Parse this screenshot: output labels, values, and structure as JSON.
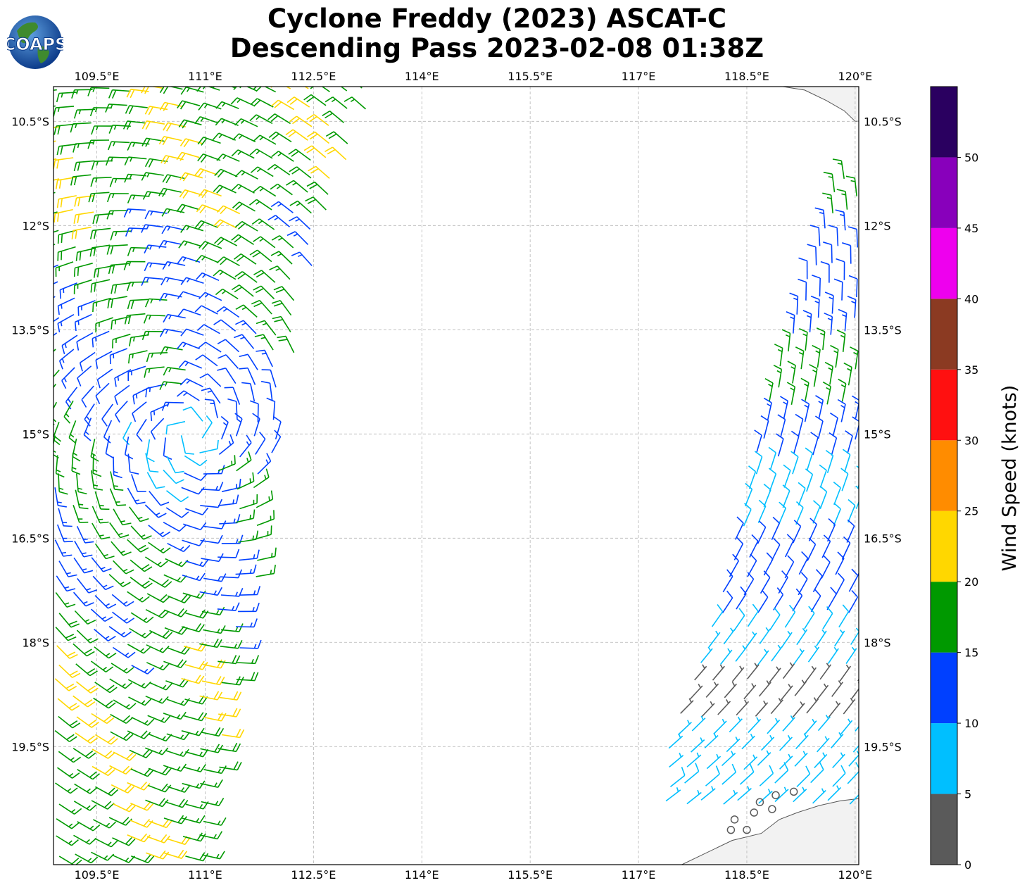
{
  "title_line1": "Cyclone Freddy (2023) ASCAT-C",
  "title_line2": "Descending Pass 2023-02-08 01:38Z",
  "logo_text": "COAPS",
  "map": {
    "lon_range": [
      108.9,
      120.05
    ],
    "lat_range": [
      -21.2,
      -10.0
    ],
    "lon_ticks": [
      "109.5°E",
      "111°E",
      "112.5°E",
      "114°E",
      "115.5°E",
      "117°E",
      "118.5°E",
      "120°E"
    ],
    "lon_tick_values": [
      109.5,
      111.0,
      112.5,
      114.0,
      115.5,
      117.0,
      118.5,
      120.0
    ],
    "lat_ticks": [
      "10.5°S",
      "12°S",
      "13.5°S",
      "15°S",
      "16.5°S",
      "18°S",
      "19.5°S"
    ],
    "lat_tick_values": [
      -10.5,
      -12.0,
      -13.5,
      -15.0,
      -16.5,
      -18.0,
      -19.5
    ],
    "gridlines": true,
    "land_color": "#f2f2f2",
    "coast_color": "#555555"
  },
  "colorbar": {
    "label": "Wind Speed (knots)",
    "ticks": [
      "0",
      "5",
      "10",
      "15",
      "20",
      "25",
      "30",
      "35",
      "40",
      "45",
      "50"
    ],
    "tick_values": [
      0,
      5,
      10,
      15,
      20,
      25,
      30,
      35,
      40,
      45,
      50
    ],
    "range": [
      0,
      55
    ],
    "bins": [
      {
        "min": 0,
        "max": 5,
        "color": "#5a5a5a"
      },
      {
        "min": 5,
        "max": 10,
        "color": "#00bfff"
      },
      {
        "min": 10,
        "max": 15,
        "color": "#0040ff"
      },
      {
        "min": 15,
        "max": 20,
        "color": "#009900"
      },
      {
        "min": 20,
        "max": 25,
        "color": "#ffd700"
      },
      {
        "min": 25,
        "max": 30,
        "color": "#ff8c00"
      },
      {
        "min": 30,
        "max": 35,
        "color": "#ff1010"
      },
      {
        "min": 35,
        "max": 40,
        "color": "#8b3a22"
      },
      {
        "min": 40,
        "max": 45,
        "color": "#ee00ee"
      },
      {
        "min": 45,
        "max": 50,
        "color": "#8800bb"
      },
      {
        "min": 50,
        "max": 55,
        "color": "#2a0060"
      }
    ]
  },
  "chart_data": {
    "type": "wind_barbs",
    "units": "knots",
    "center": [
      110.8,
      -15.0
    ],
    "swath_west_edge": [
      [
        108.9,
        -10.0
      ],
      [
        108.9,
        -21.2
      ]
    ],
    "swath_east_edge": [
      [
        113.3,
        -10.2
      ],
      [
        112.3,
        -13.2
      ],
      [
        111.6,
        -17.8
      ],
      [
        111.1,
        -20.4
      ]
    ],
    "swath2_west_edge": [
      [
        119.8,
        -11.2
      ],
      [
        118.8,
        -14.5
      ],
      [
        118.1,
        -17.5
      ],
      [
        117.4,
        -19.5
      ],
      [
        117.3,
        -21.0
      ]
    ],
    "swath2_east_edge": [
      [
        120.05,
        -11.2
      ],
      [
        120.05,
        -21.0
      ]
    ],
    "calm_circles": [
      [
        118.28,
        -20.7
      ],
      [
        118.33,
        -20.55
      ],
      [
        118.5,
        -20.7
      ],
      [
        118.6,
        -20.45
      ],
      [
        118.68,
        -20.3
      ],
      [
        118.85,
        -20.4
      ],
      [
        118.9,
        -20.2
      ],
      [
        119.15,
        -20.15
      ]
    ]
  }
}
